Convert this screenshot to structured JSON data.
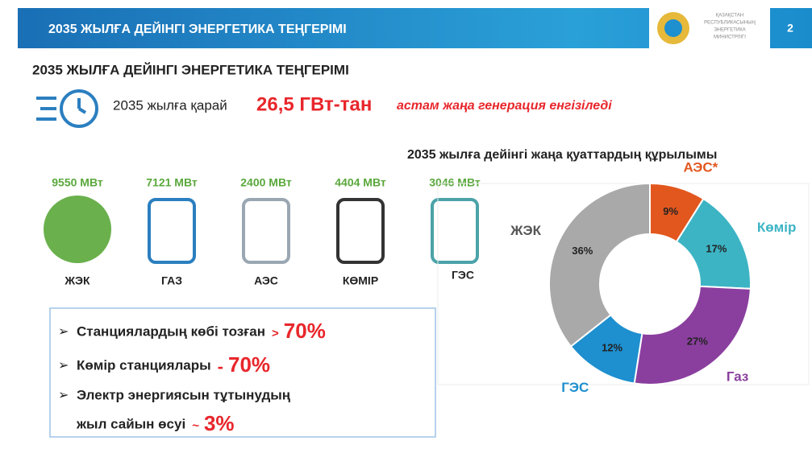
{
  "header": {
    "title": "2035 ЖЫЛҒА ДЕЙІНГІ ЭНЕРГЕТИКА ТЕҢГЕРІМІ",
    "logo_text": [
      "ҚАЗАҚСТАН",
      "РЕСПУБЛИКАСЫНЫҢ",
      "ЭНЕРГЕТИКА",
      "МИНИСТРЛІГІ"
    ],
    "page": "2"
  },
  "heading": "2035 ЖЫЛҒА ДЕЙІНГІ ЭНЕРГЕТИКА ТЕҢГЕРІМІ",
  "lead": {
    "prefix": "2035 жылға қарай",
    "amount": "26,5 ГВт-тан",
    "suffix": "астам жаңа генерация енгізіледі"
  },
  "sources": [
    {
      "power": "9550 МВт",
      "label": "ЖЭК"
    },
    {
      "power": "7121 МВт",
      "label": "ГАЗ"
    },
    {
      "power": "2400 МВт",
      "label": "АЭС"
    },
    {
      "power": "4404 МВт",
      "label": "КӨМІР"
    },
    {
      "power": "3046 МВт",
      "label": "ГЭС"
    }
  ],
  "bullets": [
    {
      "text": "Станциялардың көбі тозған",
      "sign": ">",
      "value": "70%"
    },
    {
      "text": "Көмір станциялары",
      "sign": "-",
      "value": "70%"
    },
    {
      "text": "Электр энергиясын тұтынудың",
      "text2": "жыл сайын өсуі",
      "sign": "~",
      "value": "3%"
    }
  ],
  "chart_data": {
    "type": "donut",
    "title": "2035 жылға дейінгі жаңа қуаттардың құрылымы",
    "categories": [
      "АЭС*",
      "Көмір",
      "Газ",
      "ГЭС",
      "ЖЭК"
    ],
    "values": [
      9,
      17,
      27,
      12,
      36
    ],
    "value_labels": [
      "9%",
      "17%",
      "27%",
      "12%",
      "36%"
    ],
    "colors": [
      "#e2571e",
      "#3cb4c4",
      "#8a3f9e",
      "#1e8fcf",
      "#a9a9a9"
    ]
  }
}
